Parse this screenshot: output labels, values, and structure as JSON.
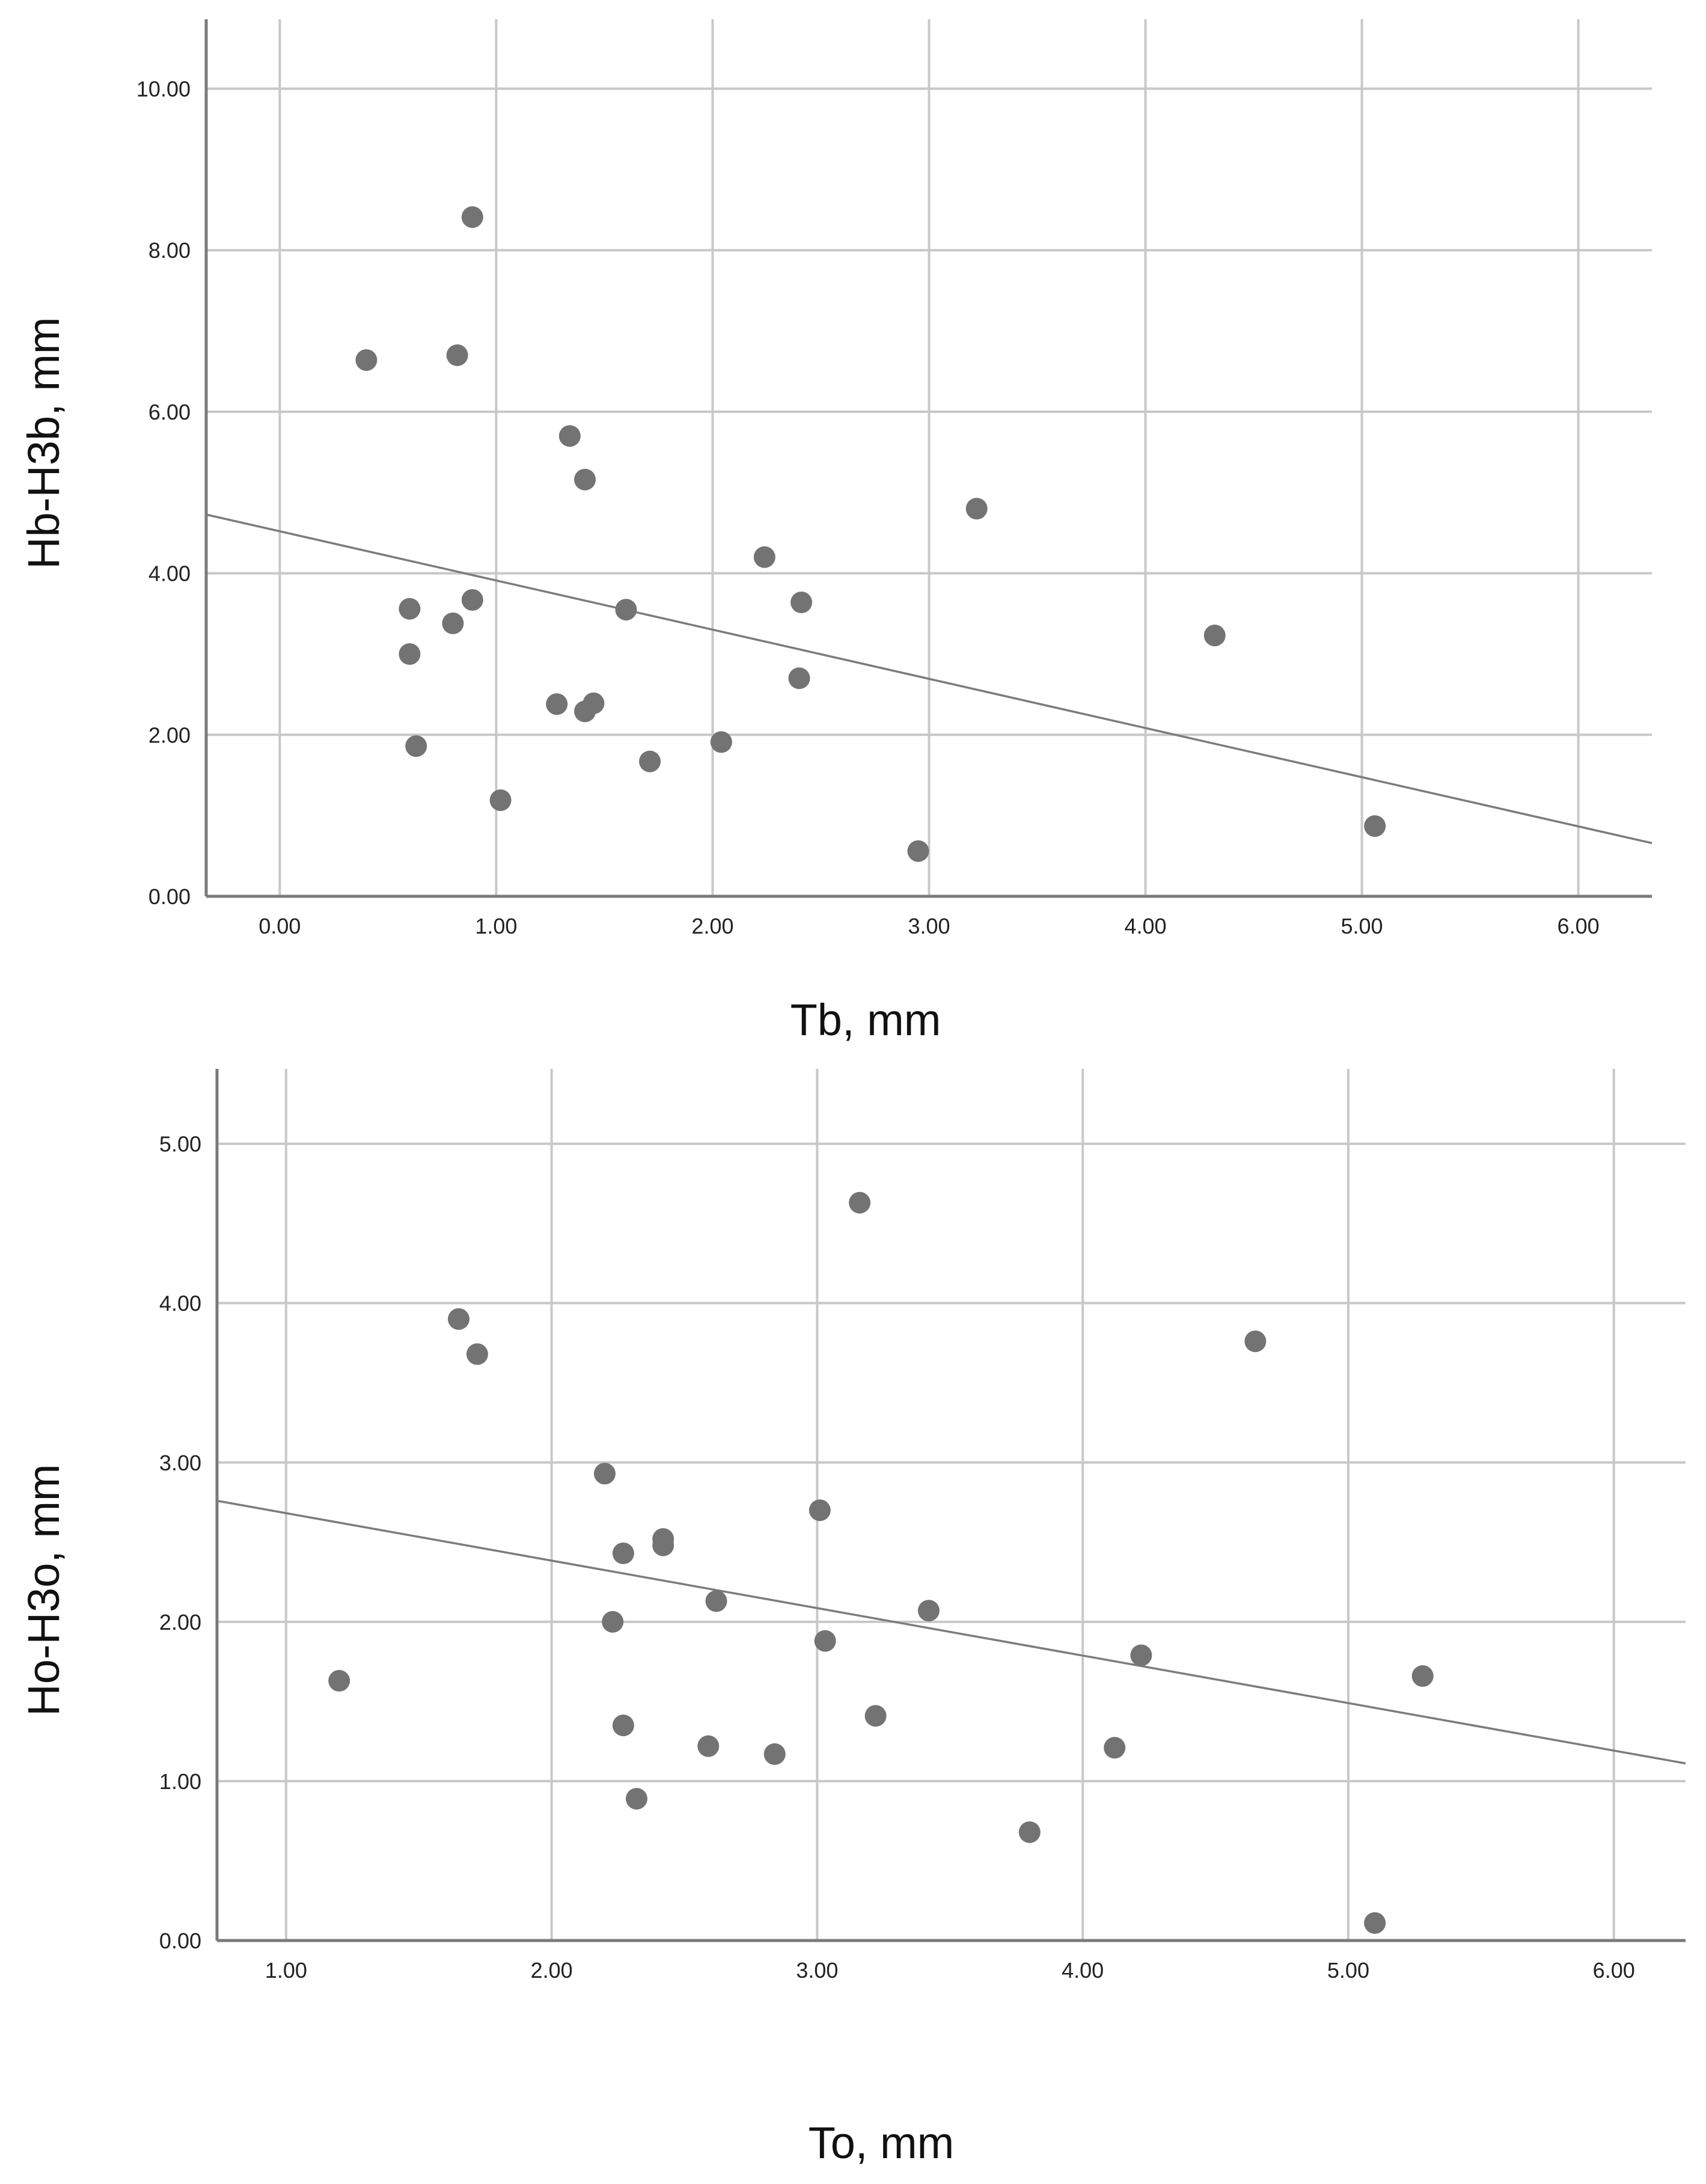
{
  "colors": {
    "grid": "#c8c8c8",
    "axis": "#7a7a7a",
    "point": "#737373",
    "fit_line": "#7c7c7c",
    "text": "#222222"
  },
  "chart_data": [
    {
      "type": "scatter",
      "title": "",
      "xlabel": "Tb, mm",
      "ylabel": "Hb-H3b, mm",
      "xlim": [
        -0.34,
        6.34
      ],
      "ylim": [
        0,
        10.86
      ],
      "xticks": [
        "0.00",
        "1.00",
        "2.00",
        "3.00",
        "4.00",
        "5.00",
        "6.00"
      ],
      "yticks": [
        "0.00",
        "2.00",
        "4.00",
        "6.00",
        "8.00",
        "10.00"
      ],
      "grid": true,
      "fit_line": {
        "slope": -0.609,
        "intercept": 4.52
      },
      "points": [
        {
          "x": 0.4,
          "y": 6.64
        },
        {
          "x": 0.82,
          "y": 6.7
        },
        {
          "x": 0.89,
          "y": 8.41
        },
        {
          "x": 1.34,
          "y": 5.7
        },
        {
          "x": 1.41,
          "y": 5.16
        },
        {
          "x": 0.6,
          "y": 3.56
        },
        {
          "x": 0.89,
          "y": 3.67
        },
        {
          "x": 0.8,
          "y": 3.38
        },
        {
          "x": 0.6,
          "y": 3.0
        },
        {
          "x": 0.63,
          "y": 1.86
        },
        {
          "x": 1.02,
          "y": 1.19
        },
        {
          "x": 1.28,
          "y": 2.38
        },
        {
          "x": 1.41,
          "y": 2.29
        },
        {
          "x": 1.45,
          "y": 2.39
        },
        {
          "x": 1.6,
          "y": 3.55
        },
        {
          "x": 1.71,
          "y": 1.67
        },
        {
          "x": 2.04,
          "y": 1.91
        },
        {
          "x": 2.24,
          "y": 4.2
        },
        {
          "x": 2.41,
          "y": 3.64
        },
        {
          "x": 2.4,
          "y": 2.7
        },
        {
          "x": 2.95,
          "y": 0.56
        },
        {
          "x": 3.22,
          "y": 4.8
        },
        {
          "x": 4.32,
          "y": 3.23
        },
        {
          "x": 5.06,
          "y": 0.87
        }
      ]
    },
    {
      "type": "scatter",
      "title": "",
      "xlabel": "To, mm",
      "ylabel": "Ho-H3o, mm",
      "xlim": [
        0.74,
        6.27
      ],
      "ylim": [
        0,
        5.47
      ],
      "xticks": [
        "1.00",
        "2.00",
        "3.00",
        "4.00",
        "5.00",
        "6.00"
      ],
      "yticks": [
        "0.00",
        "1.00",
        "2.00",
        "3.00",
        "4.00",
        "5.00"
      ],
      "grid": true,
      "fit_line": {
        "slope": -0.298,
        "intercept": 2.98
      },
      "points": [
        {
          "x": 1.2,
          "y": 1.63
        },
        {
          "x": 1.65,
          "y": 3.9
        },
        {
          "x": 1.72,
          "y": 3.68
        },
        {
          "x": 2.2,
          "y": 2.93
        },
        {
          "x": 2.23,
          "y": 2.0
        },
        {
          "x": 2.27,
          "y": 2.43
        },
        {
          "x": 2.27,
          "y": 1.35
        },
        {
          "x": 2.32,
          "y": 0.89
        },
        {
          "x": 2.42,
          "y": 2.52
        },
        {
          "x": 2.42,
          "y": 2.48
        },
        {
          "x": 2.59,
          "y": 1.22
        },
        {
          "x": 2.62,
          "y": 2.13
        },
        {
          "x": 2.84,
          "y": 1.17
        },
        {
          "x": 3.01,
          "y": 2.7
        },
        {
          "x": 3.03,
          "y": 1.88
        },
        {
          "x": 3.16,
          "y": 4.63
        },
        {
          "x": 3.22,
          "y": 1.41
        },
        {
          "x": 3.42,
          "y": 2.07
        },
        {
          "x": 3.8,
          "y": 0.68
        },
        {
          "x": 4.12,
          "y": 1.21
        },
        {
          "x": 4.22,
          "y": 1.79
        },
        {
          "x": 4.65,
          "y": 3.76
        },
        {
          "x": 5.1,
          "y": 0.11
        },
        {
          "x": 5.28,
          "y": 1.66
        }
      ]
    }
  ]
}
